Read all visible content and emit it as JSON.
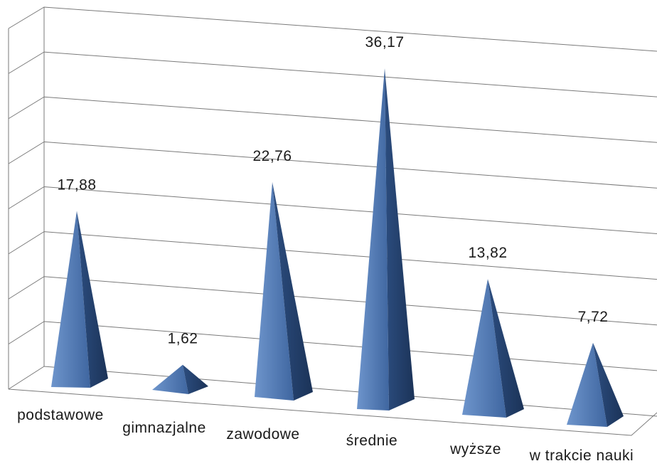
{
  "chart_data": {
    "type": "bar",
    "style": "3d-pyramid",
    "categories": [
      "podstawowe",
      "gimnazjalne",
      "zawodowe",
      "średnie",
      "wyższe",
      "w trakcie nauki"
    ],
    "values": [
      17.88,
      1.62,
      22.76,
      36.17,
      13.82,
      7.72
    ],
    "value_labels": [
      "17,88",
      "1,62",
      "22,76",
      "36,17",
      "13,82",
      "7,72"
    ],
    "ylim": [
      0,
      40
    ],
    "grid": true,
    "legend": "none",
    "colors": {
      "pyramid_light": "#5b83bd",
      "pyramid_mid": "#3d629a",
      "pyramid_dark": "#1f3b63",
      "grid": "#7a7a7a"
    }
  }
}
